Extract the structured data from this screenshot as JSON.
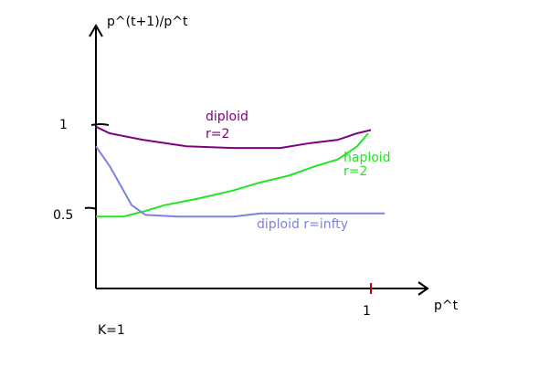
{
  "chart_data": {
    "type": "line",
    "ylabel": "p^(t+1)/p^t",
    "xlabel": "p^t",
    "x_ticks": [
      {
        "value": 1,
        "label": "1"
      }
    ],
    "y_ticks": [
      {
        "value": 1,
        "label": "1"
      },
      {
        "value": 0.5,
        "label": "0.5"
      }
    ],
    "xlim": [
      0,
      1.2
    ],
    "ylim": [
      0,
      1.5
    ],
    "grid": false,
    "note": "K=1",
    "series": [
      {
        "name_lines": [
          "diploid",
          "r=2"
        ],
        "color": "#800080",
        "points": [
          [
            0.0,
            0.99
          ],
          [
            0.05,
            0.95
          ],
          [
            0.17,
            0.91
          ],
          [
            0.33,
            0.87
          ],
          [
            0.5,
            0.86
          ],
          [
            0.67,
            0.86
          ],
          [
            0.78,
            0.89
          ],
          [
            0.88,
            0.91
          ],
          [
            0.95,
            0.95
          ],
          [
            1.0,
            0.97
          ]
        ]
      },
      {
        "name_lines": [
          "haploid",
          "r=2"
        ],
        "color": "#22e622",
        "points": [
          [
            0.0,
            0.44
          ],
          [
            0.1,
            0.44
          ],
          [
            0.17,
            0.47
          ],
          [
            0.25,
            0.51
          ],
          [
            0.37,
            0.55
          ],
          [
            0.5,
            0.6
          ],
          [
            0.6,
            0.65
          ],
          [
            0.7,
            0.69
          ],
          [
            0.8,
            0.75
          ],
          [
            0.88,
            0.79
          ],
          [
            0.95,
            0.87
          ],
          [
            0.99,
            0.95
          ]
        ]
      },
      {
        "name_lines": [
          "diploid r=infty"
        ],
        "color": "#7b82e0",
        "points": [
          [
            0.0,
            0.87
          ],
          [
            0.05,
            0.75
          ],
          [
            0.1,
            0.6
          ],
          [
            0.13,
            0.51
          ],
          [
            0.18,
            0.45
          ],
          [
            0.3,
            0.44
          ],
          [
            0.5,
            0.44
          ],
          [
            0.6,
            0.46
          ],
          [
            0.7,
            0.46
          ],
          [
            0.85,
            0.46
          ],
          [
            1.05,
            0.46
          ]
        ]
      }
    ]
  }
}
